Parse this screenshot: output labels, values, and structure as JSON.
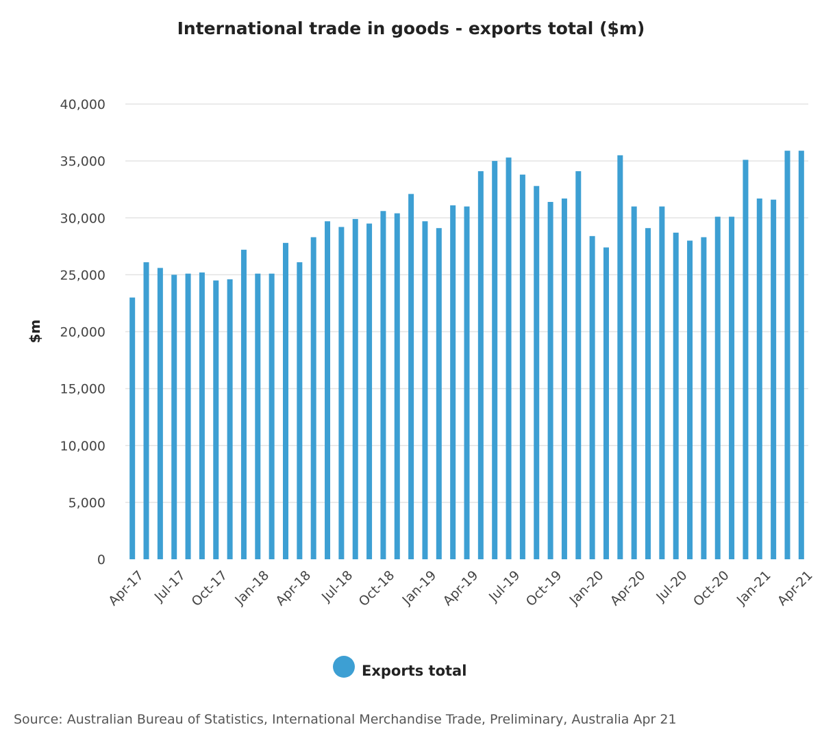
{
  "chart_data": {
    "type": "bar",
    "title": "International trade in goods - exports total ($m)",
    "xlabel": "",
    "ylabel": "$m",
    "ylim": [
      0,
      40000
    ],
    "yticks": [
      0,
      5000,
      10000,
      15000,
      20000,
      25000,
      30000,
      35000,
      40000
    ],
    "ytick_labels": [
      "0",
      "5,000",
      "10,000",
      "15,000",
      "20,000",
      "25,000",
      "30,000",
      "35,000",
      "40,000"
    ],
    "grid": true,
    "legend_position": "bottom-center",
    "categories": [
      "Apr-17",
      "May-17",
      "Jun-17",
      "Jul-17",
      "Aug-17",
      "Sep-17",
      "Oct-17",
      "Nov-17",
      "Dec-17",
      "Jan-18",
      "Feb-18",
      "Mar-18",
      "Apr-18",
      "May-18",
      "Jun-18",
      "Jul-18",
      "Aug-18",
      "Sep-18",
      "Oct-18",
      "Nov-18",
      "Dec-18",
      "Jan-19",
      "Feb-19",
      "Mar-19",
      "Apr-19",
      "May-19",
      "Jun-19",
      "Jul-19",
      "Aug-19",
      "Sep-19",
      "Oct-19",
      "Nov-19",
      "Dec-19",
      "Jan-20",
      "Feb-20",
      "Mar-20",
      "Apr-20",
      "May-20",
      "Jun-20",
      "Jul-20",
      "Aug-20",
      "Sep-20",
      "Oct-20",
      "Nov-20",
      "Dec-20",
      "Jan-21",
      "Feb-21",
      "Mar-21",
      "Apr-21"
    ],
    "xtick_labels": [
      "Apr-17",
      "Jul-17",
      "Oct-17",
      "Jan-18",
      "Apr-18",
      "Jul-18",
      "Oct-18",
      "Jan-19",
      "Apr-19",
      "Jul-19",
      "Oct-19",
      "Jan-20",
      "Apr-20",
      "Jul-20",
      "Oct-20",
      "Jan-21",
      "Apr-21"
    ],
    "series": [
      {
        "name": "Exports total",
        "color": "#3d9fd3",
        "values": [
          23000,
          26100,
          25600,
          25000,
          25100,
          25200,
          24500,
          24600,
          27200,
          25100,
          25100,
          27800,
          26100,
          28300,
          29700,
          29200,
          29900,
          29500,
          30600,
          30400,
          32100,
          29700,
          29100,
          31100,
          31000,
          34100,
          35000,
          35300,
          33800,
          32800,
          31400,
          31700,
          34100,
          28400,
          27400,
          35500,
          31000,
          29100,
          31000,
          28700,
          28000,
          28300,
          30100,
          30100,
          35100,
          31700,
          31600,
          35900,
          35900
        ]
      }
    ]
  },
  "source_text": "Source: Australian Bureau of Statistics, International Merchandise Trade, Preliminary, Australia Apr 21"
}
